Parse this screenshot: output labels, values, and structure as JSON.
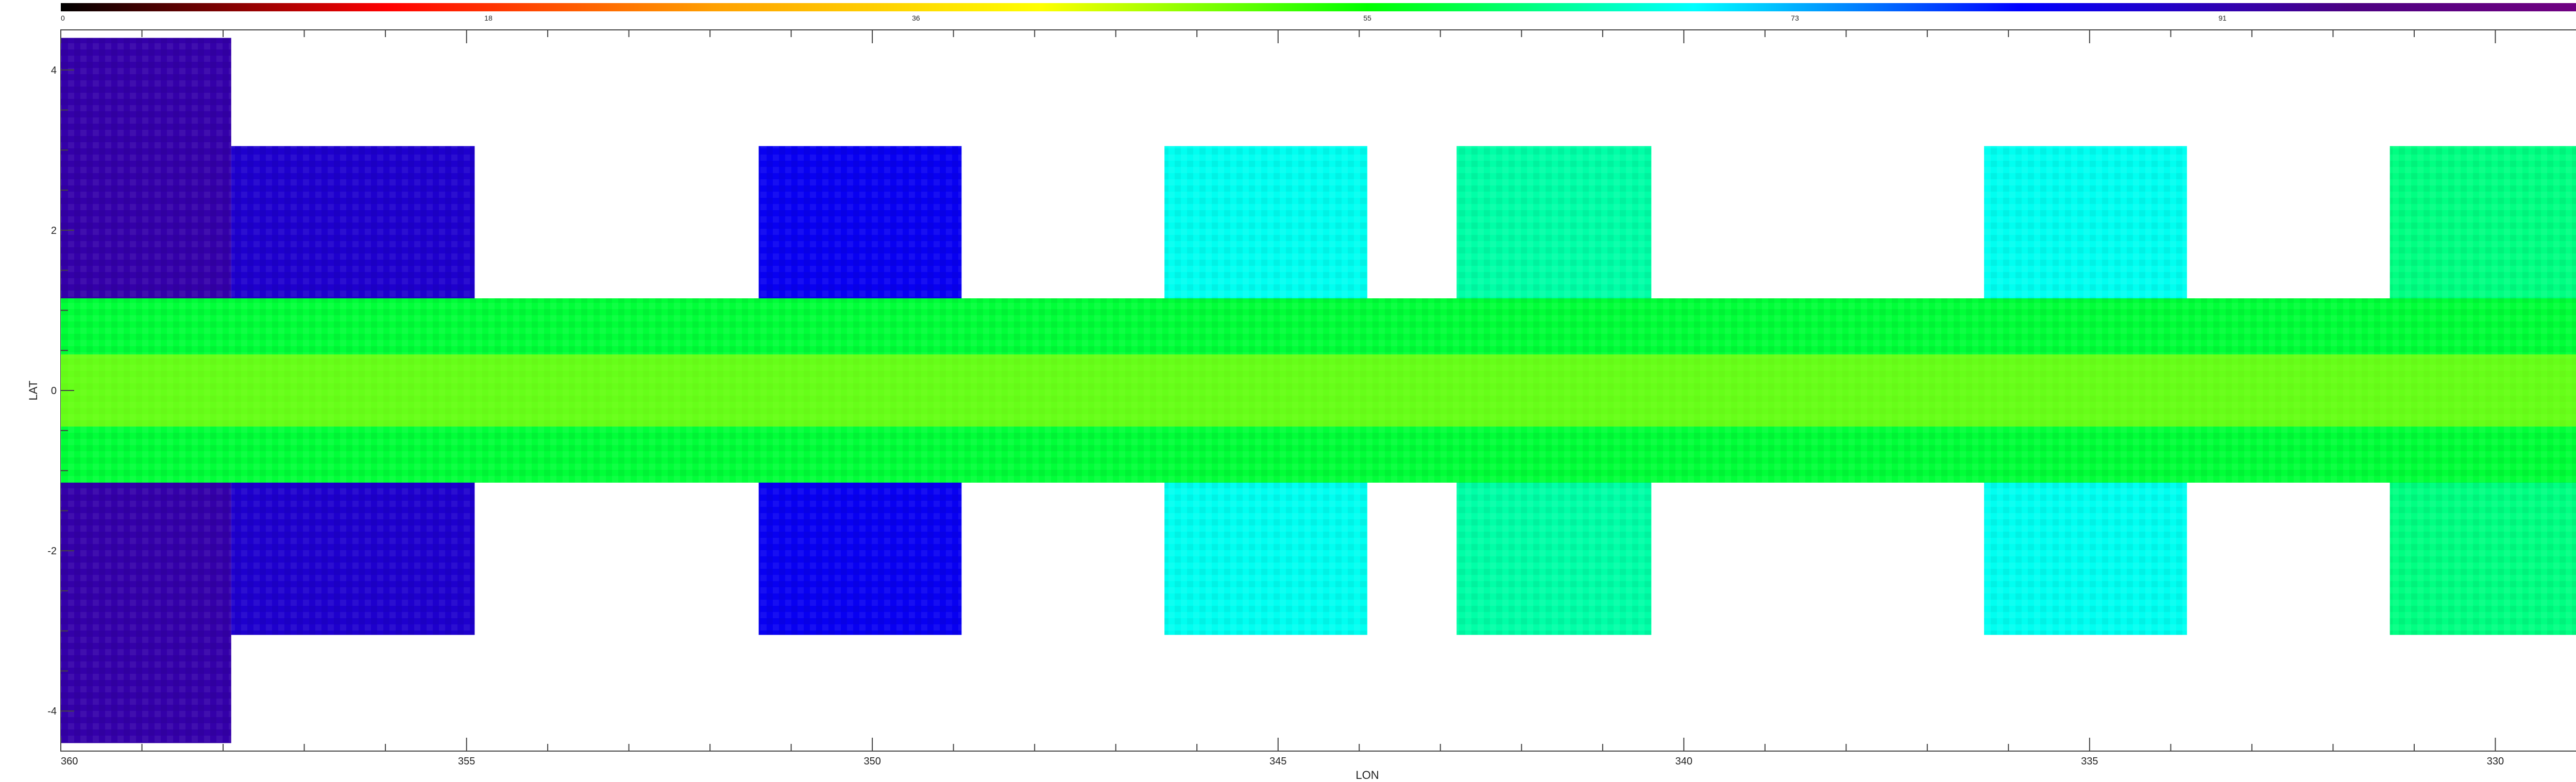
{
  "chart_data": {
    "type": "heatmap",
    "title": "",
    "xlabel": "LON",
    "ylabel": "LAT",
    "xlim": [
      360,
      327.8
    ],
    "ylim": [
      -4.5,
      4.5
    ],
    "x_ticks": [
      "360",
      "355",
      "350",
      "345",
      "340",
      "335",
      "330"
    ],
    "x_tick_values": [
      360,
      355,
      350,
      345,
      340,
      335,
      330
    ],
    "y_ticks": [
      "4",
      "2",
      "0",
      "-2",
      "-4"
    ],
    "y_tick_values": [
      4,
      2,
      0,
      -2,
      -4
    ],
    "colorbar": {
      "tick_labels": [
        "0",
        "18",
        "36",
        "55",
        "73",
        "91",
        "110"
      ],
      "tick_values": [
        0,
        18,
        36,
        55,
        73,
        91,
        110
      ],
      "range": [
        0,
        110
      ],
      "colors": [
        "#000000",
        "#ff0000",
        "#ffa000",
        "#ffff00",
        "#00ff00",
        "#00ffff",
        "#0000ff",
        "#4b0082",
        "#800080"
      ]
    },
    "regions": [
      {
        "name": "strip",
        "lon": [
          360,
          327.8
        ],
        "lat": [
          -1.15,
          1.15
        ],
        "level": 58
      },
      {
        "name": "block-1",
        "lon": [
          360,
          357.9
        ],
        "lat": [
          -4.4,
          4.4
        ],
        "level": 92
      },
      {
        "name": "block-2",
        "lon": [
          357.9,
          354.9
        ],
        "lat": [
          -3.05,
          3.05
        ],
        "level": 88
      },
      {
        "name": "block-3",
        "lon": [
          351.4,
          348.9
        ],
        "lat": [
          -3.05,
          3.05
        ],
        "level": 84
      },
      {
        "name": "block-4",
        "lon": [
          346.4,
          343.9
        ],
        "lat": [
          -3.05,
          3.05
        ],
        "level": 68
      },
      {
        "name": "block-5",
        "lon": [
          342.8,
          340.4
        ],
        "lat": [
          -3.05,
          3.05
        ],
        "level": 64
      },
      {
        "name": "block-6",
        "lon": [
          336.3,
          333.8
        ],
        "lat": [
          -3.05,
          3.05
        ],
        "level": 68
      },
      {
        "name": "block-7",
        "lon": [
          331.3,
          328.8
        ],
        "lat": [
          -3.05,
          3.05
        ],
        "level": 62
      }
    ]
  }
}
